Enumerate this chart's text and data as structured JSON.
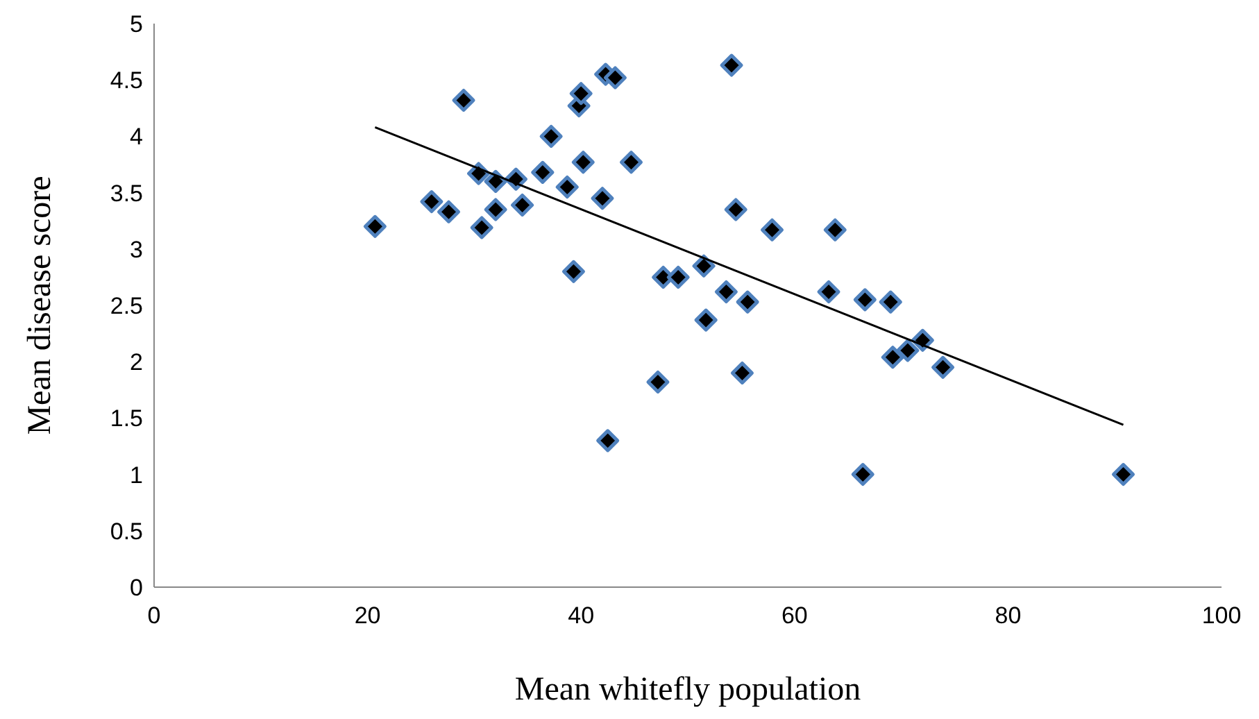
{
  "chart_data": {
    "type": "scatter",
    "xlabel": "Mean whitefly population",
    "ylabel": "Mean disease score",
    "xlim": [
      0,
      100
    ],
    "xticks": [
      0,
      20,
      40,
      60,
      80,
      100
    ],
    "ylim": [
      0,
      5
    ],
    "yticks": [
      0,
      0.5,
      1,
      1.5,
      2,
      2.5,
      3,
      3.5,
      4,
      4.5,
      5
    ],
    "grid": false,
    "series": [
      {
        "color": "#000000",
        "marker": "diamond",
        "x": [
          20.7,
          26,
          27.6,
          29,
          30.4,
          30.7,
          32,
          32,
          33.9,
          34.5,
          36.4,
          37.2,
          38.7,
          39.3,
          39.8,
          40,
          40.2,
          42,
          42.3,
          43.2,
          42.5,
          44.7,
          47.2,
          47.7,
          49.1,
          51.5,
          51.7,
          53.6,
          54.1,
          54.5,
          55.1,
          55.6,
          57.9,
          63.2,
          63.8,
          66.6,
          66.4,
          69,
          69.2,
          70.6,
          72,
          73.9,
          90.8
        ],
        "values": [
          3.2,
          3.42,
          3.33,
          4.32,
          3.67,
          3.19,
          3.6,
          3.35,
          3.62,
          3.39,
          3.68,
          4.0,
          3.55,
          2.8,
          4.27,
          4.38,
          3.77,
          3.45,
          4.55,
          4.52,
          1.3,
          3.77,
          1.82,
          2.75,
          2.75,
          2.85,
          2.37,
          2.62,
          4.63,
          3.35,
          1.9,
          2.53,
          3.17,
          2.62,
          3.17,
          2.55,
          1.0,
          2.53,
          2.04,
          2.1,
          2.19,
          1.95,
          1.0
        ]
      },
      {
        "type": "line",
        "color": "#000000",
        "marker": "none",
        "x": [
          20.7,
          90.8
        ],
        "values": [
          4.08,
          1.44
        ]
      }
    ]
  }
}
